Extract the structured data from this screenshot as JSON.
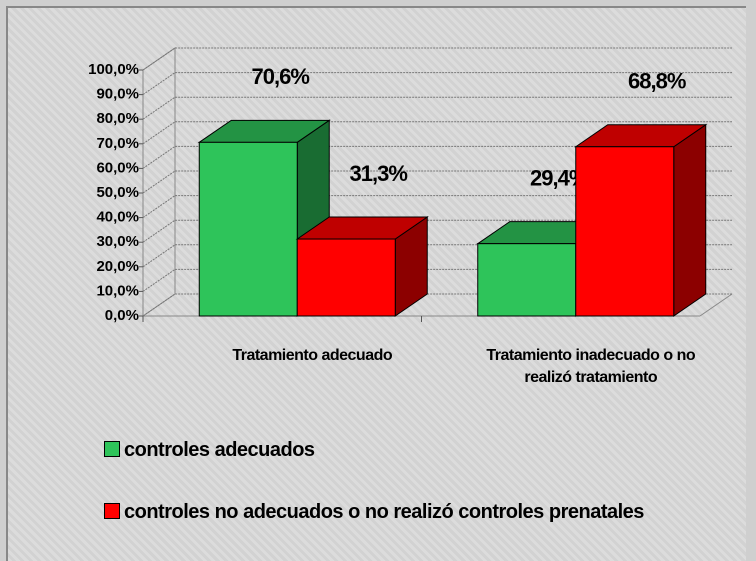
{
  "chart_data": {
    "type": "bar3d",
    "categories": [
      "Tratamiento adecuado",
      "Tratamiento inadecuado o no realizó tratamiento"
    ],
    "series": [
      {
        "name": "controles adecuados",
        "color": "#2ec45a",
        "values": [
          70.6,
          29.4
        ],
        "value_labels": [
          "70,6%",
          "29,4%"
        ]
      },
      {
        "name": "controles no adecuados o no realizó controles prenatales",
        "color": "#ff0000",
        "values": [
          31.3,
          68.8
        ],
        "value_labels": [
          "31,3%",
          "68,8%"
        ]
      }
    ],
    "ylim": [
      0,
      100
    ],
    "yticks": [
      {
        "value": 0,
        "label": "0,0%"
      },
      {
        "value": 10,
        "label": "10,0%"
      },
      {
        "value": 20,
        "label": "20,0%"
      },
      {
        "value": 30,
        "label": "30,0%"
      },
      {
        "value": 40,
        "label": "40,0%"
      },
      {
        "value": 50,
        "label": "50,0%"
      },
      {
        "value": 60,
        "label": "60,0%"
      },
      {
        "value": 70,
        "label": "70,0%"
      },
      {
        "value": 80,
        "label": "80,0%"
      },
      {
        "value": 90,
        "label": "90,0%"
      },
      {
        "value": 100,
        "label": "100,0%"
      }
    ],
    "grid": true
  }
}
